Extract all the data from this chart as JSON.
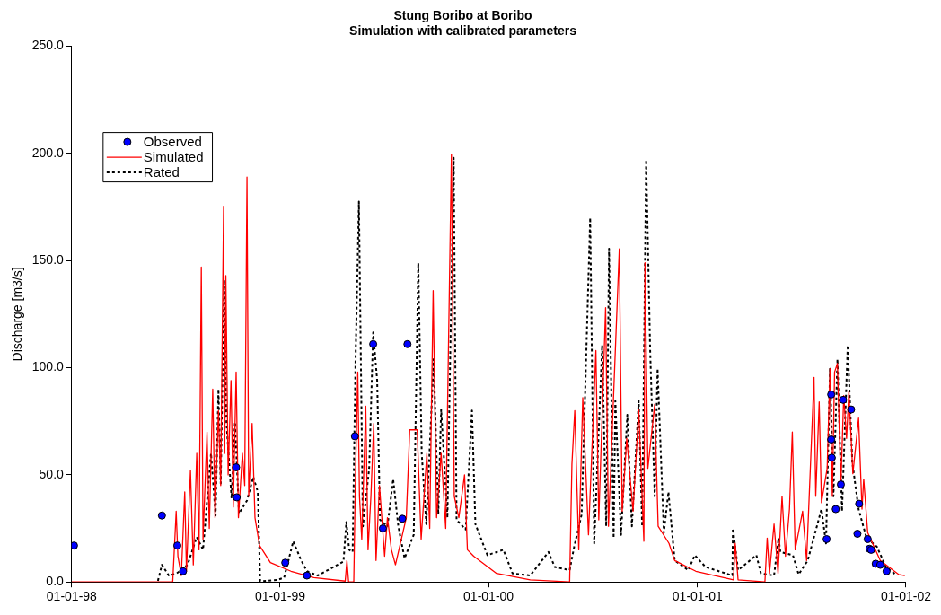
{
  "chart_data": {
    "type": "line",
    "title": "Stung Boribo at Boribo",
    "subtitle": "Simulation with calibrated parameters",
    "ylabel": "Discharge [m3/s]",
    "xlim": [
      "1998-01-01",
      "2002-01-01"
    ],
    "xticks": [
      {
        "value": "1998-01-01",
        "label": "01-01-98"
      },
      {
        "value": "1999-01-01",
        "label": "01-01-99"
      },
      {
        "value": "2000-01-01",
        "label": "01-01-00"
      },
      {
        "value": "2001-01-01",
        "label": "01-01-01"
      },
      {
        "value": "2002-01-01",
        "label": "01-01-02"
      }
    ],
    "ylim": [
      0,
      250
    ],
    "yticks": [
      {
        "value": 0,
        "label": "0.0"
      },
      {
        "value": 50,
        "label": "50.0"
      },
      {
        "value": 100,
        "label": "100.0"
      },
      {
        "value": 150,
        "label": "150.0"
      },
      {
        "value": 200,
        "label": "200.0"
      },
      {
        "value": 250,
        "label": "250.0"
      }
    ],
    "grid": false,
    "legend": "top left",
    "series": [
      {
        "name": "Observed",
        "type": "scatter",
        "marker": "circle",
        "color": "#0000ff",
        "x": [
          "1998-01-05",
          "1998-06-08",
          "1998-07-05",
          "1998-07-15",
          "1998-10-16",
          "1998-10-17",
          "1999-01-10",
          "1999-02-17",
          "1999-05-12",
          "1999-06-13",
          "1999-06-30",
          "1999-08-03",
          "1999-08-12",
          "2001-08-15",
          "2001-08-23",
          "2001-08-23",
          "2001-08-24",
          "2001-08-31",
          "2001-09-09",
          "2001-09-13",
          "2001-09-27",
          "2001-10-08",
          "2001-10-11",
          "2001-10-26",
          "2001-10-29",
          "2001-11-01",
          "2001-11-09",
          "2001-11-17",
          "2001-11-28"
        ],
        "values": [
          17,
          31,
          17,
          5,
          53.5,
          39.5,
          9,
          3,
          68,
          111,
          25,
          29.5,
          111,
          20,
          87.5,
          66.5,
          58,
          34,
          45.5,
          85,
          80.5,
          22.5,
          36.5,
          20,
          15.5,
          15,
          8.5,
          8,
          5
        ]
      },
      {
        "name": "Simulated",
        "marker": "none",
        "line_style": "solid",
        "color": "#ff0000",
        "x": [
          "1998-01-01",
          "1998-06-27",
          "1998-07-03",
          "1998-07-06",
          "1998-07-12",
          "1998-07-18",
          "1998-07-21",
          "1998-07-28",
          "1998-08-02",
          "1998-08-08",
          "1998-08-12",
          "1998-08-16",
          "1998-08-19",
          "1998-08-26",
          "1998-08-30",
          "1998-09-05",
          "1998-09-09",
          "1998-09-15",
          "1998-09-19",
          "1998-09-24",
          "1998-09-26",
          "1998-09-28",
          "1998-10-02",
          "1998-10-07",
          "1998-10-11",
          "1998-10-16",
          "1998-10-20",
          "1998-10-27",
          "1998-10-31",
          "1998-11-04",
          "1998-11-07",
          "1998-11-13",
          "1998-11-18",
          "1998-11-26",
          "1998-12-15",
          "1999-01-20",
          "1999-03-01",
          "1999-04-25",
          "1999-04-28",
          "1999-05-01",
          "1999-05-10",
          "1999-05-13",
          "1999-05-17",
          "1999-05-20",
          "1999-05-24",
          "1999-05-31",
          "1999-06-04",
          "1999-06-09",
          "1999-06-14",
          "1999-06-18",
          "1999-06-24",
          "1999-07-03",
          "1999-07-08",
          "1999-07-15",
          "1999-07-22",
          "1999-08-10",
          "1999-08-16",
          "1999-08-29",
          "1999-09-05",
          "1999-09-15",
          "1999-09-20",
          "1999-09-26",
          "1999-10-02",
          "1999-10-10",
          "1999-10-18",
          "1999-10-28",
          "1999-11-02",
          "1999-11-10",
          "1999-11-20",
          "1999-11-25",
          "1999-12-06",
          "2000-01-15",
          "2000-03-14",
          "2000-05-22",
          "2000-05-26",
          "2000-05-31",
          "2000-06-07",
          "2000-06-14",
          "2000-06-24",
          "2000-07-07",
          "2000-07-12",
          "2000-07-24",
          "2000-07-29",
          "2000-08-17",
          "2000-08-22",
          "2000-08-30",
          "2000-09-10",
          "2000-09-20",
          "2000-09-29",
          "2000-10-01",
          "2000-10-06",
          "2000-10-18",
          "2000-10-24",
          "2000-11-12",
          "2000-11-22",
          "2000-12-29",
          "2001-03-05",
          "2001-03-08",
          "2001-03-13",
          "2001-04-29",
          "2001-05-03",
          "2001-05-07",
          "2001-05-15",
          "2001-05-22",
          "2001-05-29",
          "2001-06-04",
          "2001-06-11",
          "2001-06-16",
          "2001-06-21",
          "2001-07-04",
          "2001-07-11",
          "2001-07-24",
          "2001-07-27",
          "2001-08-02",
          "2001-08-06",
          "2001-08-16",
          "2001-08-21",
          "2001-08-25",
          "2001-08-29",
          "2001-09-03",
          "2001-09-09",
          "2001-09-14",
          "2001-09-19",
          "2001-09-23",
          "2001-09-30",
          "2001-10-10",
          "2001-10-16",
          "2001-10-19",
          "2001-10-26",
          "2001-11-17",
          "2001-12-19",
          "2001-12-30"
        ],
        "values": [
          0,
          0,
          33,
          12,
          3,
          42,
          5,
          52,
          8,
          60,
          15,
          147,
          20,
          70,
          25,
          90,
          30,
          80,
          45,
          175,
          60,
          143,
          50,
          94,
          35,
          98,
          30,
          60,
          45,
          189,
          40,
          74,
          30,
          17,
          9,
          5,
          2,
          0.4,
          10,
          0,
          0,
          50,
          98,
          40,
          20,
          82,
          15,
          40,
          74,
          10,
          45,
          12,
          30,
          15,
          8,
          30,
          71,
          71,
          20,
          60,
          25,
          136,
          30,
          60,
          25,
          199.5,
          40,
          30,
          50,
          15,
          12,
          4,
          1,
          0,
          55,
          80,
          15,
          86,
          22,
          108,
          29,
          128,
          26,
          155.5,
          33,
          67,
          33,
          80.5,
          19,
          149,
          53,
          83,
          26,
          18,
          10,
          5,
          1,
          18,
          1,
          0,
          20.5,
          4,
          27,
          4,
          40,
          12,
          34,
          70,
          15,
          33,
          10,
          95.5,
          40,
          84,
          37,
          53,
          99.5,
          40,
          98,
          102,
          45,
          87,
          67,
          89,
          50.5,
          76.5,
          34,
          48,
          23,
          10,
          3.5,
          3
        ]
      },
      {
        "name": "Rated",
        "marker": "none",
        "line_style": "dotted",
        "color": "#000000",
        "x": [
          "1998-06-01",
          "1998-06-08",
          "1998-06-20",
          "1998-07-04",
          "1998-07-23",
          "1998-08-08",
          "1998-08-19",
          "1998-09-02",
          "1998-09-10",
          "1998-09-15",
          "1998-09-19",
          "1998-09-25",
          "1998-09-29",
          "1998-10-08",
          "1998-10-14",
          "1998-10-21",
          "1998-11-04",
          "1998-11-15",
          "1998-11-23",
          "1998-11-27",
          "1998-12-28",
          "1999-01-08",
          "1999-01-24",
          "1999-02-07",
          "1999-02-17",
          "1999-03-08",
          "1999-04-22",
          "1999-04-27",
          "1999-05-02",
          "1999-05-08",
          "1999-05-13",
          "1999-05-19",
          "1999-05-26",
          "1999-06-06",
          "1999-06-13",
          "1999-06-20",
          "1999-06-25",
          "1999-07-08",
          "1999-07-18",
          "1999-07-27",
          "1999-08-07",
          "1999-08-23",
          "1999-08-31",
          "1999-09-06",
          "1999-09-14",
          "1999-09-27",
          "1999-10-05",
          "1999-10-10",
          "1999-10-21",
          "1999-11-01",
          "1999-11-06",
          "1999-11-22",
          "1999-12-03",
          "1999-12-09",
          "1999-12-30",
          "2000-01-27",
          "2000-02-12",
          "2000-03-14",
          "2000-04-15",
          "2000-04-26",
          "2000-05-22",
          "2000-05-30",
          "2000-06-12",
          "2000-06-27",
          "2000-07-04",
          "2000-07-18",
          "2000-07-25",
          "2000-07-30",
          "2000-08-07",
          "2000-08-10",
          "2000-08-20",
          "2000-08-31",
          "2000-09-08",
          "2000-09-20",
          "2000-09-26",
          "2000-10-03",
          "2000-10-10",
          "2000-10-18",
          "2000-10-23",
          "2000-11-03",
          "2000-11-11",
          "2000-11-22",
          "2000-12-16",
          "2000-12-27",
          "2001-01-15",
          "2001-03-03",
          "2001-03-04",
          "2001-03-13",
          "2001-04-14",
          "2001-04-22",
          "2001-05-15",
          "2001-05-23",
          "2001-05-26",
          "2001-06-17",
          "2001-06-27",
          "2001-07-13",
          "2001-07-29",
          "2001-08-06",
          "2001-08-14",
          "2001-08-21",
          "2001-08-27",
          "2001-09-03",
          "2001-09-11",
          "2001-09-21",
          "2001-09-29",
          "2001-10-10",
          "2001-10-24",
          "2001-11-11",
          "2001-11-27",
          "2001-12-16"
        ],
        "values": [
          0.5,
          8,
          3,
          4,
          8,
          21,
          15,
          60,
          31,
          90,
          46,
          141,
          74.5,
          39,
          74.5,
          32,
          38,
          49,
          42,
          0.3,
          1,
          2,
          19,
          10,
          5,
          3,
          9.5,
          28,
          15,
          14,
          102,
          177.5,
          26,
          53,
          116.5,
          94,
          29,
          26,
          48,
          26,
          11,
          22,
          149,
          60,
          27,
          104,
          31.5,
          80.5,
          30,
          198,
          29,
          24.5,
          80,
          27,
          12.5,
          15,
          4,
          3,
          14,
          7,
          5.5,
          16.5,
          31.5,
          170,
          18,
          110.5,
          26,
          155.5,
          20.5,
          84.5,
          22,
          78,
          26,
          84.5,
          26,
          197,
          108,
          40,
          99.5,
          23,
          42,
          10,
          5.5,
          12.5,
          7,
          3,
          25,
          5.5,
          12.5,
          4,
          3,
          20.5,
          14,
          12.5,
          3.5,
          10,
          26,
          34,
          18,
          99.5,
          40,
          104,
          33,
          110.5,
          56,
          34,
          20.5,
          16.5,
          7,
          3
        ]
      }
    ]
  }
}
